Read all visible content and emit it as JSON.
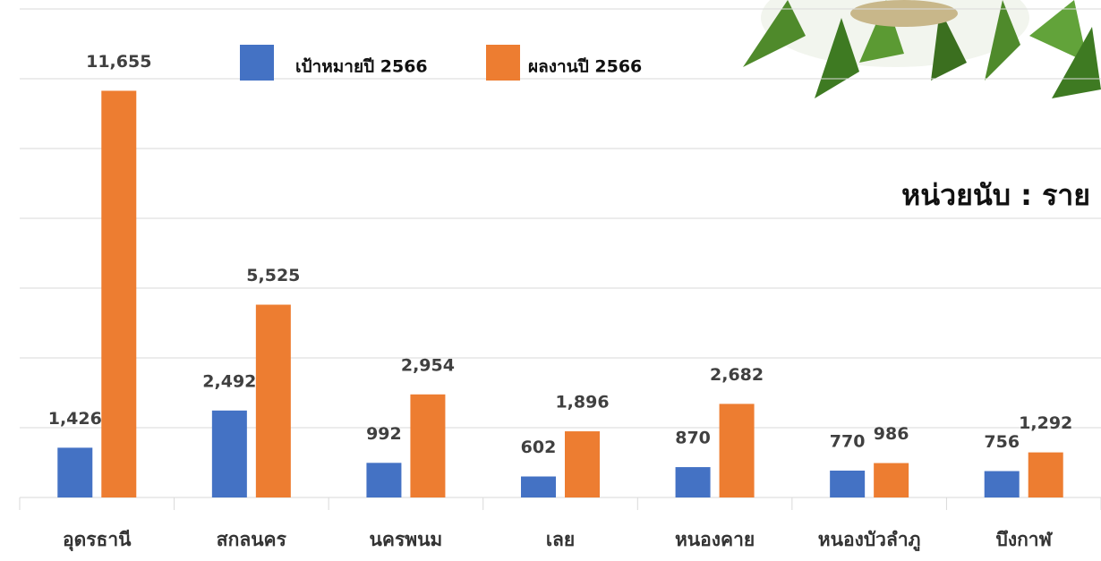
{
  "chart_data": {
    "type": "bar",
    "annotation": "หน่วยนับ : ราย",
    "categories": [
      "อุดรธานี",
      "สกลนคร",
      "นครพนม",
      "เลย",
      "หนองคาย",
      "หนองบัวลำภู",
      "บึงกาฬ"
    ],
    "series": [
      {
        "name": "เป้าหมายปี 2566",
        "color": "#4472c4",
        "values": [
          1426,
          2492,
          992,
          602,
          870,
          770,
          756
        ],
        "value_labels": [
          "1,426",
          "2,492",
          "992",
          "602",
          "870",
          "770",
          "756"
        ]
      },
      {
        "name": "ผลงานปี 2566",
        "color": "#ed7d31",
        "values": [
          11655,
          5525,
          2954,
          1896,
          2682,
          986,
          1292
        ],
        "value_labels": [
          "11,655",
          "5,525",
          "2,954",
          "1,896",
          "2,682",
          "986",
          "1,292"
        ]
      }
    ],
    "ylim": [
      0,
      14000
    ],
    "yticks": [
      0,
      2000,
      4000,
      6000,
      8000,
      10000,
      12000,
      14000
    ],
    "grid": true
  }
}
